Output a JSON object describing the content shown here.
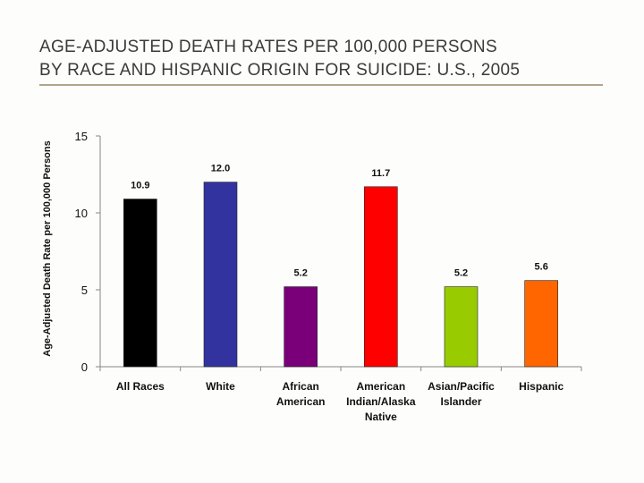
{
  "chart_data": {
    "type": "bar",
    "title": "AGE-ADJUSTED DEATH RATES PER 100,000 PERSONS BY RACE AND HISPANIC ORIGIN FOR SUICIDE: U.S., 2005",
    "title_lines": [
      "AGE-ADJUSTED DEATH RATES PER 100,000 PERSONS",
      "BY RACE AND HISPANIC ORIGIN FOR SUICIDE: U.S., 2005"
    ],
    "ylabel": "Age-Adjusted Death Rate per 100,000 Persons",
    "xlabel": "",
    "ylim": [
      0,
      15
    ],
    "yticks": [
      0,
      5,
      10,
      15
    ],
    "categories": [
      [
        "All Races"
      ],
      [
        "White"
      ],
      [
        "African",
        "American"
      ],
      [
        "American",
        "Indian/Alaska",
        "Native"
      ],
      [
        "Asian/Pacific",
        "Islander"
      ],
      [
        "Hispanic"
      ]
    ],
    "values": [
      10.9,
      12.0,
      5.2,
      11.7,
      5.2,
      5.6
    ],
    "value_labels": [
      "10.9",
      "12.0",
      "5.2",
      "11.7",
      "5.2",
      "5.6"
    ],
    "colors": [
      "#000000",
      "#3333a0",
      "#7a007a",
      "#ff0000",
      "#99cc00",
      "#ff6600"
    ],
    "grid": false,
    "legend": "none"
  }
}
